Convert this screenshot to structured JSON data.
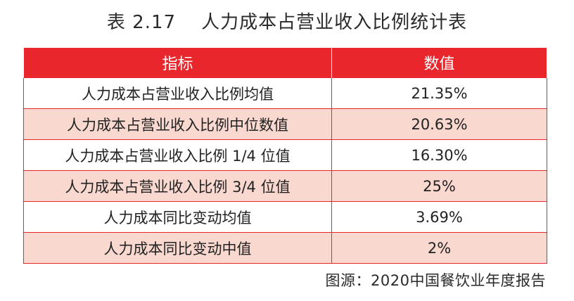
{
  "title": {
    "number": "表 2.17",
    "text": "人力成本占营业收入比例统计表"
  },
  "table": {
    "headers": [
      "指标",
      "数值"
    ],
    "rows": [
      {
        "indicator": "人力成本占营业收入比例均值",
        "value": "21.35%"
      },
      {
        "indicator": "人力成本占营业收入比例中位数值",
        "value": "20.63%"
      },
      {
        "indicator": "人力成本占营业收入比例 1/4 位值",
        "value": "16.30%"
      },
      {
        "indicator": "人力成本占营业收入比例 3/4 位值",
        "value": "25%"
      },
      {
        "indicator": "人力成本同比变动均值",
        "value": "3.69%"
      },
      {
        "indicator": "人力成本同比变动中值",
        "value": "2%"
      }
    ]
  },
  "source": "图源：2020中国餐饮业年度报告",
  "colors": {
    "header_bg": "#e8262b",
    "stripe_bg": "#f9d8cf",
    "border": "#e8262b"
  }
}
